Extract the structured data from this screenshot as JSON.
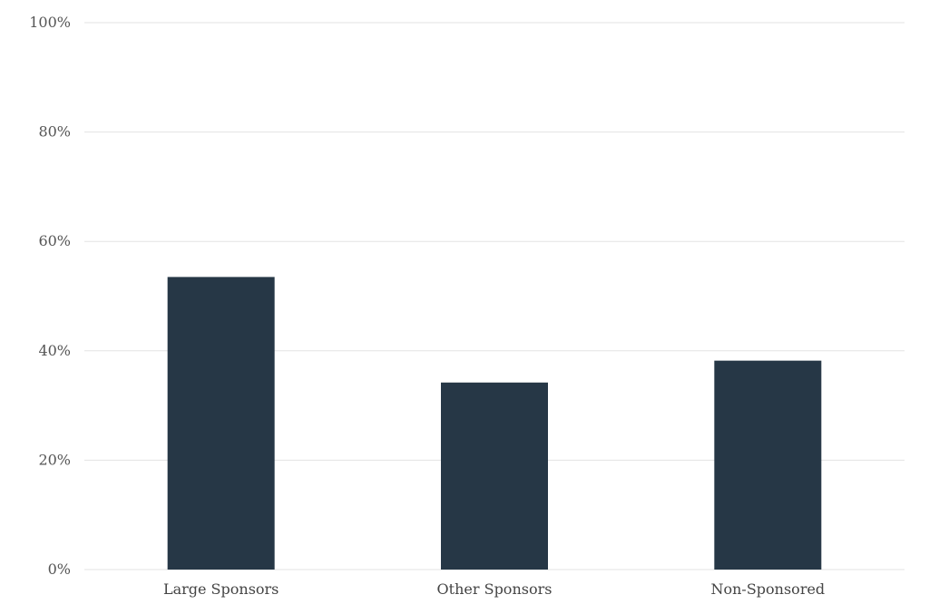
{
  "chart_data": {
    "type": "bar",
    "title": "",
    "xlabel": "",
    "ylabel": "",
    "categories": [
      "Large Sponsors",
      "Other Sponsors",
      "Non-Sponsored"
    ],
    "values": [
      53.5,
      34.2,
      38.2
    ],
    "ylim": [
      0,
      100
    ],
    "yticks": [
      0,
      20,
      40,
      60,
      80,
      100
    ],
    "ytick_labels": [
      "0%",
      "20%",
      "40%",
      "60%",
      "80%",
      "100%"
    ],
    "grid": true,
    "legend": "none",
    "colors": {
      "bar": "#263746",
      "grid": "#e3e3e3"
    }
  }
}
